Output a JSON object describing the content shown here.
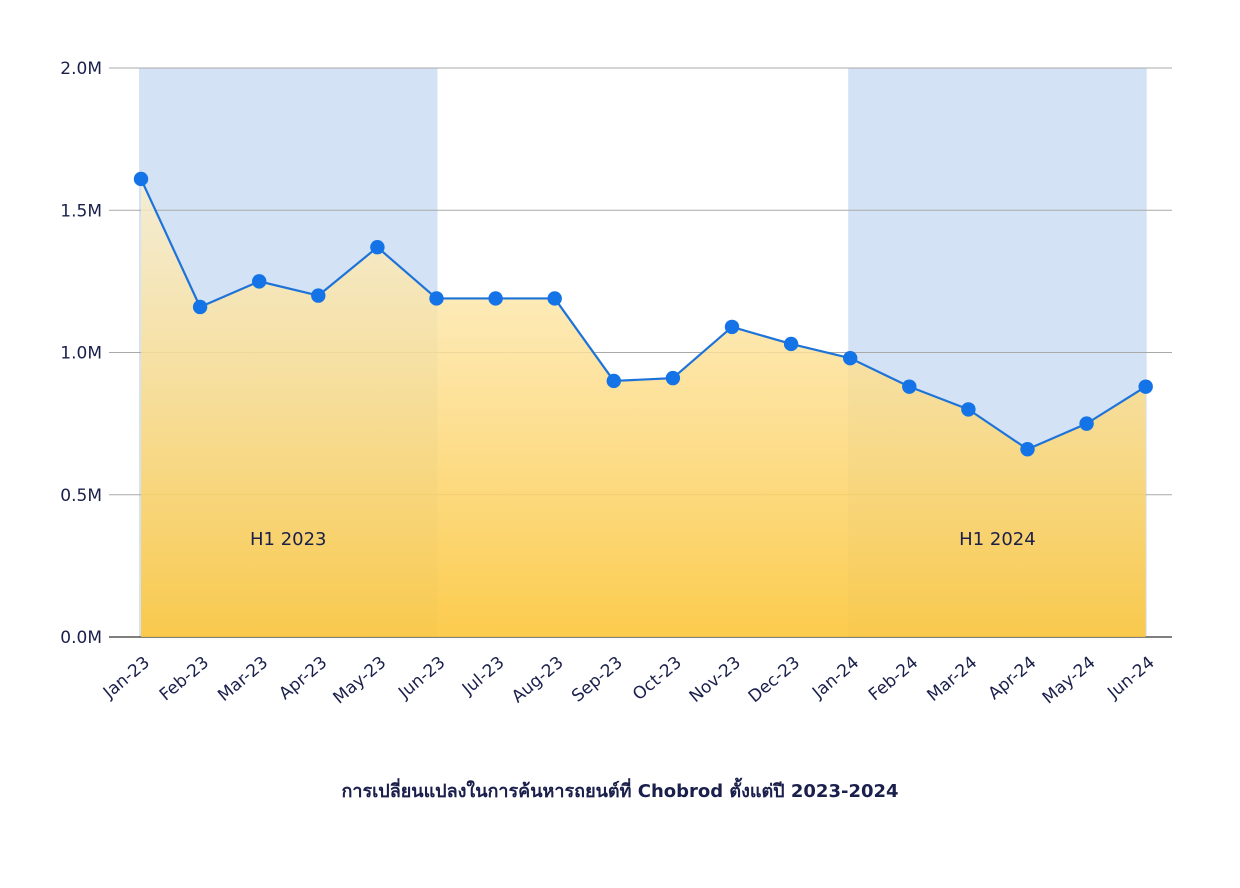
{
  "caption": "การเปลี่ยนแปลงในการค้นหารถยนต์ที่ Chobrod ตั้งแต่ปี 2023-2024",
  "chart_data": {
    "type": "area",
    "title": "การเปลี่ยนแปลงในการค้นหารถยนต์ที่ Chobrod ตั้งแต่ปี 2023-2024",
    "xlabel": "",
    "ylabel": "",
    "categories": [
      "Jan-23",
      "Feb-23",
      "Mar-23",
      "Apr-23",
      "May-23",
      "Jun-23",
      "Jul-23",
      "Aug-23",
      "Sep-23",
      "Oct-23",
      "Nov-23",
      "Dec-23",
      "Jan-24",
      "Feb-24",
      "Mar-24",
      "Apr-24",
      "May-24",
      "Jun-24"
    ],
    "series": [
      {
        "values": [
          1.61,
          1.16,
          1.25,
          1.2,
          1.37,
          1.19,
          1.19,
          1.19,
          0.9,
          0.91,
          1.09,
          1.03,
          0.98,
          0.88,
          0.8,
          0.66,
          0.75,
          0.88
        ]
      }
    ],
    "y_unit": "M",
    "ylim": [
      0,
      2.0
    ],
    "yticks": [
      0,
      0.5,
      1.0,
      1.5,
      2.0
    ],
    "ytick_labels": [
      "0.0M",
      "0.5M",
      "1.0M",
      "1.5M",
      "2.0M"
    ],
    "grid": true,
    "highlight_bands": [
      {
        "label": "H1 2023",
        "from": "Jan-23",
        "to": "Jun-23"
      },
      {
        "label": "H1 2024",
        "from": "Jan-24",
        "to": "Jun-24"
      }
    ],
    "colors": {
      "line": "#1e73d9",
      "marker": "#1473e6",
      "band": "#d3e2f5",
      "area_top": "#fdf0cc",
      "area_bottom": "#fcc73e",
      "grid": "#a9a9a9",
      "text": "#1a1f4b"
    }
  }
}
